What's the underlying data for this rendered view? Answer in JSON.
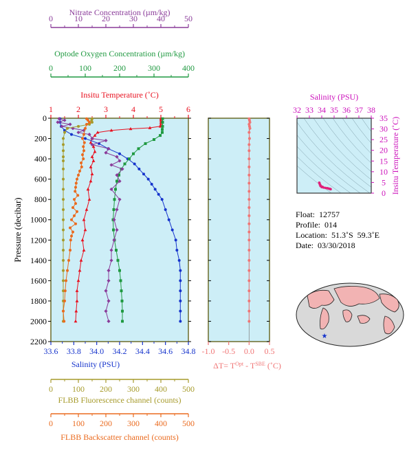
{
  "colors": {
    "nitrate": "#8a3b99",
    "oxygen": "#1f9940",
    "temperature": "#e8101f",
    "salinity": "#1533cc",
    "fluorescence": "#a69a2a",
    "backscatter": "#ea6a1e",
    "delta_t": "#f07575",
    "ts_axis": "#cc11bb",
    "plot_bg": "#cdeef7",
    "frame": "#6b6b2a"
  },
  "chart_data": [
    {
      "type": "line",
      "panel": "profile",
      "ylabel": "Pressure (decibar)",
      "yticks": [
        0,
        200,
        400,
        600,
        800,
        1000,
        1200,
        1400,
        1600,
        1800,
        2000,
        2200
      ],
      "ylim": [
        0,
        2200
      ],
      "y_inverted": true,
      "axes": {
        "nitrate": {
          "label": "Nitrate Concentration (µm/kg)",
          "range": [
            0,
            50
          ],
          "ticks": [
            "0",
            "10",
            "20",
            "30",
            "40",
            "50"
          ]
        },
        "oxygen": {
          "label": "Optode Oxygen Concentration (µm/kg)",
          "range": [
            0,
            400
          ],
          "ticks": [
            "0",
            "100",
            "200",
            "300",
            "400"
          ]
        },
        "temperature": {
          "label": "Insitu Temperature (˚C)",
          "range": [
            1,
            6
          ],
          "ticks": [
            "1",
            "2",
            "3",
            "4",
            "5",
            "6"
          ]
        },
        "salinity": {
          "label": "Salinity (PSU)",
          "range": [
            33.6,
            34.8
          ],
          "ticks": [
            "33.6",
            "33.8",
            "34.0",
            "34.2",
            "34.4",
            "34.6",
            "34.8"
          ]
        },
        "fluorescence": {
          "label": "FLBB Fluorescence channel (counts)",
          "range": [
            0,
            500
          ],
          "ticks": [
            "0",
            "100",
            "200",
            "300",
            "400",
            "500"
          ]
        },
        "backscatter": {
          "label": "FLBB Backscatter channel (counts)",
          "range": [
            0,
            500
          ],
          "ticks": [
            "0",
            "100",
            "200",
            "300",
            "400",
            "500"
          ]
        }
      },
      "series": [
        {
          "axis": "temperature",
          "marker": "triangle",
          "values": [
            [
              5.0,
              5
            ],
            [
              5.0,
              20
            ],
            [
              5.0,
              40
            ],
            [
              5.0,
              60
            ],
            [
              4.98,
              80
            ],
            [
              4.6,
              95
            ],
            [
              3.9,
              105
            ],
            [
              3.2,
              120
            ],
            [
              2.7,
              140
            ],
            [
              2.6,
              170
            ],
            [
              2.5,
              200
            ],
            [
              2.45,
              240
            ],
            [
              2.55,
              280
            ],
            [
              2.6,
              330
            ],
            [
              2.5,
              380
            ],
            [
              2.55,
              420
            ],
            [
              2.45,
              480
            ],
            [
              2.5,
              550
            ],
            [
              2.45,
              620
            ],
            [
              2.35,
              700
            ],
            [
              2.4,
              800
            ],
            [
              2.3,
              900
            ],
            [
              2.2,
              1000
            ],
            [
              2.25,
              1100
            ],
            [
              2.15,
              1200
            ],
            [
              2.2,
              1300
            ],
            [
              2.1,
              1400
            ],
            [
              2.05,
              1500
            ],
            [
              2.0,
              1600
            ],
            [
              1.95,
              1700
            ],
            [
              1.95,
              1800
            ],
            [
              1.92,
              1900
            ],
            [
              1.9,
              2000
            ]
          ]
        },
        {
          "axis": "salinity",
          "marker": "circle",
          "values": [
            [
              33.68,
              5
            ],
            [
              33.68,
              40
            ],
            [
              33.69,
              80
            ],
            [
              33.72,
              120
            ],
            [
              33.78,
              160
            ],
            [
              33.9,
              200
            ],
            [
              34.02,
              250
            ],
            [
              34.1,
              300
            ],
            [
              34.2,
              350
            ],
            [
              34.27,
              400
            ],
            [
              34.33,
              450
            ],
            [
              34.37,
              500
            ],
            [
              34.41,
              550
            ],
            [
              34.45,
              600
            ],
            [
              34.48,
              650
            ],
            [
              34.51,
              700
            ],
            [
              34.54,
              750
            ],
            [
              34.57,
              800
            ],
            [
              34.6,
              900
            ],
            [
              34.63,
              1000
            ],
            [
              34.66,
              1100
            ],
            [
              34.69,
              1200
            ],
            [
              34.7,
              1300
            ],
            [
              34.72,
              1400
            ],
            [
              34.73,
              1500
            ],
            [
              34.73,
              1600
            ],
            [
              34.73,
              1700
            ],
            [
              34.73,
              1800
            ],
            [
              34.73,
              1900
            ],
            [
              34.73,
              2000
            ]
          ]
        },
        {
          "axis": "oxygen",
          "marker": "square",
          "values": [
            [
              325,
              5
            ],
            [
              325,
              40
            ],
            [
              325,
              80
            ],
            [
              324,
              110
            ],
            [
              324,
              140
            ],
            [
              318,
              170
            ],
            [
              300,
              210
            ],
            [
              275,
              250
            ],
            [
              255,
              300
            ],
            [
              240,
              350
            ],
            [
              228,
              400
            ],
            [
              215,
              450
            ],
            [
              205,
              500
            ],
            [
              198,
              560
            ],
            [
              192,
              620
            ],
            [
              188,
              700
            ],
            [
              185,
              800
            ],
            [
              183,
              900
            ],
            [
              181,
              1000
            ],
            [
              182,
              1100
            ],
            [
              185,
              1200
            ],
            [
              190,
              1300
            ],
            [
              195,
              1400
            ],
            [
              200,
              1500
            ],
            [
              203,
              1600
            ],
            [
              205,
              1700
            ],
            [
              207,
              1800
            ],
            [
              208,
              1900
            ],
            [
              208,
              2000
            ]
          ]
        },
        {
          "axis": "nitrate",
          "marker": "diamond",
          "values": [
            [
              3,
              5
            ],
            [
              5,
              20
            ],
            [
              2.5,
              40
            ],
            [
              7,
              60
            ],
            [
              4,
              80
            ],
            [
              8,
              100
            ],
            [
              12,
              120
            ],
            [
              10,
              140
            ],
            [
              14,
              160
            ],
            [
              15,
              200
            ],
            [
              20,
              220
            ],
            [
              15,
              260
            ],
            [
              21,
              300
            ],
            [
              20,
              340
            ],
            [
              24,
              380
            ],
            [
              25,
              420
            ],
            [
              22,
              460
            ],
            [
              26,
              500
            ],
            [
              24,
              560
            ],
            [
              25,
              620
            ],
            [
              22,
              700
            ],
            [
              25,
              800
            ],
            [
              24,
              900
            ],
            [
              23,
              1000
            ],
            [
              24,
              1100
            ],
            [
              23,
              1200
            ],
            [
              22,
              1300
            ],
            [
              22,
              1400
            ],
            [
              21,
              1500
            ],
            [
              21,
              1600
            ],
            [
              20,
              1700
            ],
            [
              21,
              1800
            ],
            [
              20,
              1900
            ],
            [
              21,
              2000
            ]
          ]
        },
        {
          "axis": "fluorescence",
          "marker": "circle",
          "values": [
            [
              150,
              5
            ],
            [
              148,
              20
            ],
            [
              150,
              40
            ],
            [
              140,
              60
            ],
            [
              100,
              80
            ],
            [
              60,
              100
            ],
            [
              50,
              140
            ],
            [
              45,
              200
            ],
            [
              45,
              260
            ],
            [
              45,
              320
            ],
            [
              45,
              380
            ],
            [
              45,
              420
            ],
            [
              45,
              500
            ],
            [
              45,
              600
            ],
            [
              45,
              700
            ],
            [
              45,
              800
            ],
            [
              45,
              900
            ],
            [
              45,
              1000
            ],
            [
              45,
              1100
            ],
            [
              45,
              1200
            ],
            [
              45,
              1300
            ],
            [
              45,
              1400
            ],
            [
              45,
              1500
            ],
            [
              45,
              1600
            ],
            [
              45,
              1700
            ],
            [
              45,
              1800
            ],
            [
              45,
              1900
            ],
            [
              45,
              2000
            ]
          ]
        },
        {
          "axis": "backscatter",
          "marker": "circle",
          "values": [
            [
              130,
              5
            ],
            [
              135,
              20
            ],
            [
              140,
              40
            ],
            [
              130,
              60
            ],
            [
              125,
              100
            ],
            [
              120,
              160
            ],
            [
              115,
              200
            ],
            [
              122,
              240
            ],
            [
              118,
              280
            ],
            [
              120,
              320
            ],
            [
              115,
              360
            ],
            [
              118,
              400
            ],
            [
              110,
              440
            ],
            [
              112,
              480
            ],
            [
              105,
              520
            ],
            [
              100,
              560
            ],
            [
              95,
              600
            ],
            [
              92,
              640
            ],
            [
              90,
              680
            ],
            [
              88,
              720
            ],
            [
              98,
              760
            ],
            [
              85,
              800
            ],
            [
              90,
              840
            ],
            [
              80,
              880
            ],
            [
              95,
              920
            ],
            [
              85,
              960
            ],
            [
              75,
              1000
            ],
            [
              90,
              1040
            ],
            [
              70,
              1080
            ],
            [
              80,
              1120
            ],
            [
              75,
              1160
            ],
            [
              72,
              1200
            ],
            [
              70,
              1300
            ],
            [
              65,
              1400
            ],
            [
              60,
              1500
            ],
            [
              55,
              1600
            ],
            [
              52,
              1700
            ],
            [
              50,
              1800
            ],
            [
              45,
              1900
            ],
            [
              48,
              2000
            ]
          ]
        }
      ]
    },
    {
      "type": "scatter",
      "panel": "delta_t",
      "xlabel": "ΔT= T",
      "xlabel_sup1": "Opt",
      "xlabel_mid": " - T",
      "xlabel_sup2": "SBE",
      "xlabel_unit": " (˚C)",
      "xlim": [
        -1.0,
        0.5
      ],
      "xticks": [
        "-1.0",
        "-0.5",
        "0.0",
        "0.5"
      ],
      "ylim": [
        0,
        2200
      ],
      "values": [
        [
          0.0,
          5
        ],
        [
          0.01,
          20
        ],
        [
          0.02,
          40
        ],
        [
          0.0,
          60
        ],
        [
          0.01,
          80
        ],
        [
          0.02,
          100
        ],
        [
          0.0,
          140
        ],
        [
          0.01,
          200
        ],
        [
          0.0,
          260
        ],
        [
          0.0,
          320
        ],
        [
          0.0,
          400
        ],
        [
          0.0,
          480
        ],
        [
          0.0,
          560
        ],
        [
          0.0,
          640
        ],
        [
          0.0,
          720
        ],
        [
          0.0,
          800
        ],
        [
          0.0,
          880
        ],
        [
          0.0,
          960
        ],
        [
          0.0,
          1040
        ],
        [
          0.0,
          1120
        ],
        [
          0.0,
          1200
        ],
        [
          0.0,
          1300
        ],
        [
          0.0,
          1400
        ],
        [
          0.0,
          1500
        ],
        [
          0.0,
          1600
        ],
        [
          0.0,
          1700
        ],
        [
          0.0,
          1800
        ],
        [
          0.0,
          1900
        ],
        [
          0.0,
          2000
        ]
      ]
    },
    {
      "type": "scatter",
      "panel": "ts",
      "xlabel": "Salinity (PSU)",
      "ylabel": "Insitu Temperature (˚C)",
      "xlim": [
        32,
        38
      ],
      "ylim": [
        0,
        35
      ],
      "xticks": [
        "32",
        "33",
        "34",
        "35",
        "36",
        "37",
        "38"
      ],
      "yticks": [
        "0",
        "5",
        "10",
        "15",
        "20",
        "25",
        "30",
        "35"
      ],
      "values": [
        [
          33.8,
          4.9
        ],
        [
          33.82,
          4.6
        ],
        [
          33.85,
          4.0
        ],
        [
          33.9,
          3.3
        ],
        [
          34.0,
          2.8
        ],
        [
          34.15,
          2.6
        ],
        [
          34.3,
          2.45
        ],
        [
          34.45,
          2.3
        ],
        [
          34.55,
          2.15
        ],
        [
          34.65,
          2.0
        ],
        [
          34.7,
          1.9
        ],
        [
          34.72,
          1.85
        ],
        [
          33.9,
          3.6
        ],
        [
          34.05,
          3.0
        ]
      ]
    }
  ],
  "info": {
    "float": "Float:  12757",
    "profile": "Profile:  014",
    "location": "Location:  51.3˚S  59.3˚E",
    "date": "Date:  03/30/2018"
  },
  "map": {
    "marker": "★"
  }
}
